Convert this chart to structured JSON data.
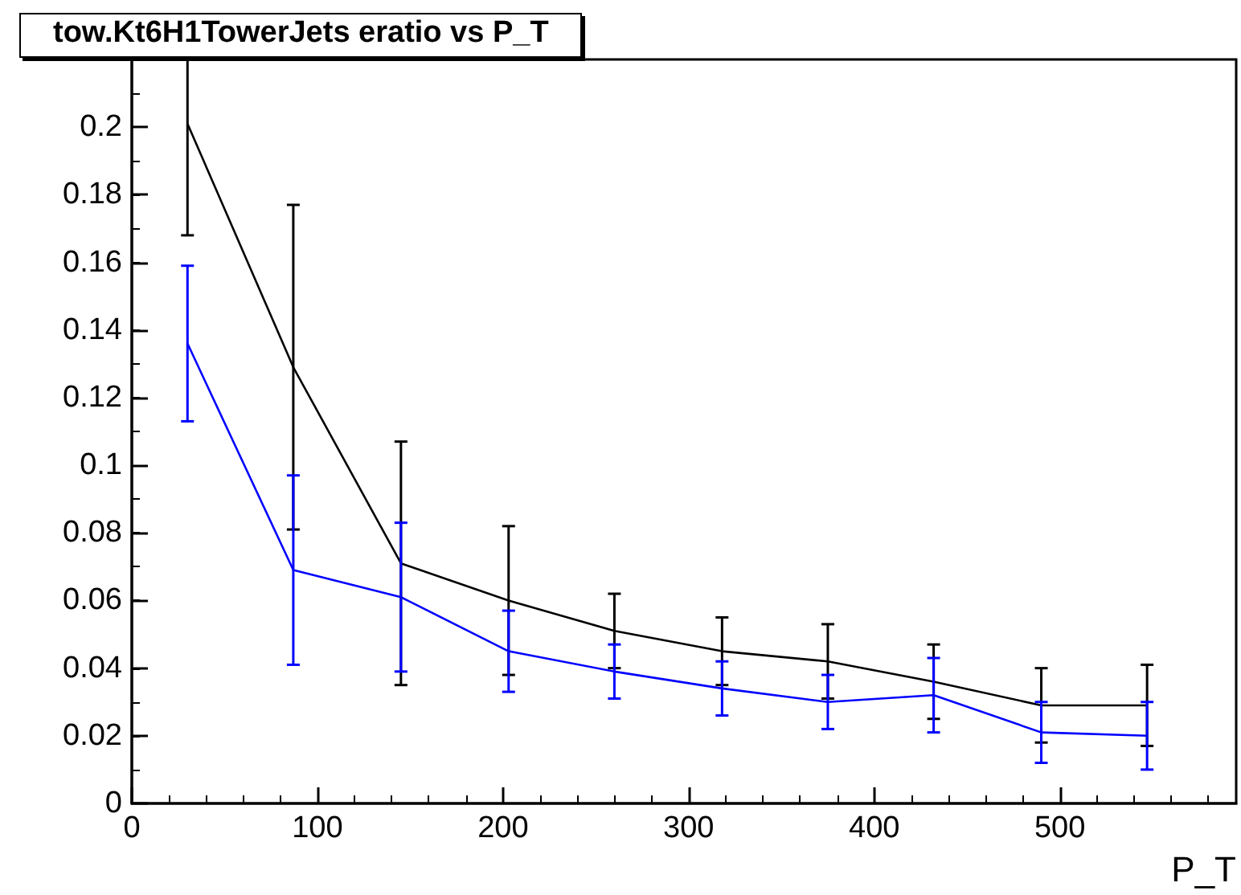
{
  "chart_data": {
    "type": "line",
    "title": "tow.Kt6H1TowerJets eratio vs P_T",
    "xlabel": "P_T",
    "x": [
      30,
      87,
      145,
      203,
      260,
      318,
      375,
      432,
      490,
      547
    ],
    "series": [
      {
        "color": "#000000",
        "values": [
          0.201,
          0.129,
          0.071,
          0.06,
          0.051,
          0.045,
          0.042,
          0.036,
          0.029,
          0.029
        ],
        "errors": [
          0.033,
          0.048,
          0.036,
          0.022,
          0.011,
          0.01,
          0.011,
          0.011,
          0.011,
          0.012
        ]
      },
      {
        "color": "#0000ff",
        "values": [
          0.136,
          0.069,
          0.061,
          0.045,
          0.039,
          0.034,
          0.03,
          0.032,
          0.021,
          0.02
        ],
        "errors": [
          0.023,
          0.028,
          0.022,
          0.012,
          0.008,
          0.008,
          0.008,
          0.011,
          0.009,
          0.01
        ]
      }
    ],
    "xlim": [
      0,
      595
    ],
    "xticks": [
      0,
      100,
      200,
      300,
      400,
      500
    ],
    "ylim": [
      0,
      0.22
    ],
    "yticks": [
      0,
      0.02,
      0.04,
      0.06,
      0.08,
      0.1,
      0.12,
      0.14,
      0.16,
      0.18,
      0.2,
      {
        "value": 0.22,
        "label": null
      }
    ],
    "grid": false,
    "marker": "none",
    "line_style": "solid"
  }
}
